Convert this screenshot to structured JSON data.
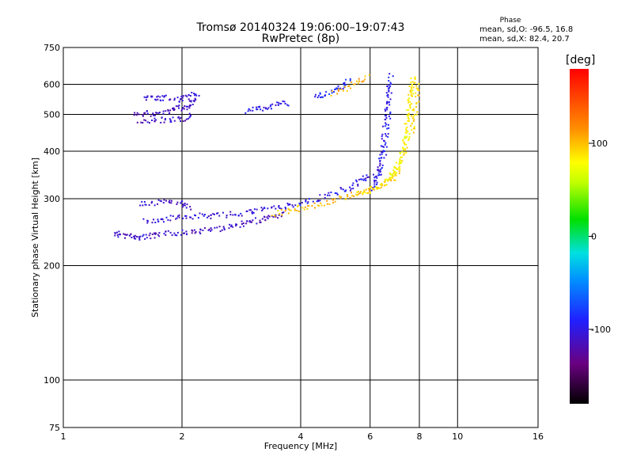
{
  "header": {
    "title_line1": "Tromsø 20140324 19:06:00–19:07:43",
    "title_line2": "RwPretec (8p)",
    "phase_label": "Phase",
    "stats_o": "mean, sd,O: -96.5, 16.8",
    "stats_x": "mean, sd,X:  82.4, 20.7"
  },
  "chart_data": {
    "type": "scatter",
    "xlabel": "Frequency [MHz]",
    "ylabel": "Stationary phase Virtual Height [km]",
    "x_scale": "log",
    "y_scale": "log",
    "xlim": [
      1,
      16
    ],
    "ylim": [
      75,
      750
    ],
    "x_ticks": [
      1,
      2,
      4,
      6,
      8,
      10,
      16
    ],
    "x_tick_labels": [
      "1",
      "2",
      "4",
      "6",
      "8",
      "10",
      "16"
    ],
    "y_ticks": [
      75,
      100,
      200,
      300,
      400,
      500,
      600,
      750
    ],
    "y_tick_labels": [
      "75",
      "100",
      "200",
      "300",
      "400",
      "500",
      "600",
      "750"
    ],
    "grid": true,
    "colorbar": {
      "label": "[deg]",
      "range": [
        -180,
        180
      ],
      "ticks": [
        -100,
        0,
        100
      ],
      "tick_labels": [
        "-100",
        "0",
        "100"
      ]
    },
    "series": [
      {
        "type": "traces",
        "traces": [
          {
            "phase": -112,
            "points": [
              [
                1.35,
                245
              ],
              [
                1.4,
                242
              ],
              [
                1.48,
                240
              ],
              [
                1.55,
                238
              ],
              [
                1.65,
                240
              ],
              [
                1.75,
                242
              ],
              [
                1.9,
                245
              ],
              [
                2.05,
                246
              ],
              [
                2.2,
                247
              ],
              [
                2.4,
                250
              ],
              [
                2.6,
                254
              ],
              [
                2.8,
                258
              ],
              [
                3.0,
                262
              ],
              [
                3.2,
                266
              ],
              [
                3.4,
                270
              ],
              [
                3.6,
                274
              ]
            ]
          },
          {
            "phase": -105,
            "points": [
              [
                1.6,
                262
              ],
              [
                1.75,
                265
              ],
              [
                1.9,
                268
              ],
              [
                2.05,
                270
              ],
              [
                2.25,
                272
              ],
              [
                2.45,
                272
              ],
              [
                2.7,
                275
              ],
              [
                2.95,
                278
              ],
              [
                3.2,
                282
              ],
              [
                3.5,
                286
              ],
              [
                3.8,
                290
              ]
            ]
          },
          {
            "phase": -110,
            "points": [
              [
                1.55,
                292
              ],
              [
                1.7,
                294
              ],
              [
                1.85,
                296
              ],
              [
                2.0,
                292
              ],
              [
                2.1,
                286
              ]
            ]
          },
          {
            "phase": -100,
            "points": [
              [
                3.8,
                290
              ],
              [
                4.2,
                298
              ],
              [
                4.6,
                305
              ],
              [
                5.0,
                315
              ],
              [
                5.4,
                325
              ],
              [
                5.7,
                338
              ],
              [
                5.9,
                348
              ]
            ]
          },
          {
            "phase": -95,
            "points": [
              [
                6.05,
                320
              ],
              [
                6.2,
                335
              ],
              [
                6.35,
                360
              ],
              [
                6.5,
                400
              ],
              [
                6.6,
                460
              ],
              [
                6.65,
                520
              ],
              [
                6.7,
                580
              ],
              [
                6.75,
                640
              ]
            ]
          },
          {
            "phase": -100,
            "points": [
              [
                6.15,
                345
              ],
              [
                6.3,
                370
              ],
              [
                6.45,
                420
              ],
              [
                6.55,
                480
              ],
              [
                6.62,
                550
              ],
              [
                6.68,
                610
              ]
            ]
          },
          {
            "phase": -115,
            "points": [
              [
                1.5,
                500
              ],
              [
                1.62,
                508
              ],
              [
                1.75,
                500
              ],
              [
                1.85,
                512
              ],
              [
                1.95,
                520
              ],
              [
                2.05,
                528
              ],
              [
                2.12,
                540
              ],
              [
                2.18,
                560
              ]
            ]
          },
          {
            "phase": -112,
            "points": [
              [
                1.55,
                480
              ],
              [
                1.7,
                483
              ],
              [
                1.85,
                486
              ],
              [
                2.0,
                488
              ],
              [
                2.12,
                500
              ]
            ]
          },
          {
            "phase": -108,
            "points": [
              [
                1.6,
                555
              ],
              [
                1.7,
                552
              ],
              [
                1.8,
                556
              ],
              [
                1.95,
                548
              ],
              [
                2.05,
                555
              ],
              [
                2.15,
                575
              ]
            ]
          },
          {
            "phase": -100,
            "points": [
              [
                2.9,
                510
              ],
              [
                3.1,
                518
              ],
              [
                3.3,
                525
              ],
              [
                3.5,
                532
              ],
              [
                3.7,
                538
              ]
            ]
          },
          {
            "phase": -90,
            "points": [
              [
                4.3,
                555
              ],
              [
                4.6,
                568
              ],
              [
                4.9,
                585
              ],
              [
                5.1,
                600
              ],
              [
                5.3,
                615
              ]
            ]
          },
          {
            "phase": 105,
            "points": [
              [
                3.4,
                275
              ],
              [
                3.7,
                280
              ],
              [
                4.0,
                285
              ],
              [
                4.4,
                291
              ],
              [
                4.8,
                298
              ],
              [
                5.2,
                305
              ],
              [
                5.6,
                312
              ],
              [
                6.0,
                318
              ],
              [
                6.4,
                326
              ],
              [
                6.8,
                340
              ],
              [
                7.1,
                360
              ]
            ]
          },
          {
            "phase": 88,
            "points": [
              [
                5.5,
                310
              ],
              [
                6.0,
                318
              ],
              [
                6.4,
                330
              ],
              [
                6.8,
                345
              ],
              [
                7.1,
                368
              ],
              [
                7.3,
                400
              ],
              [
                7.45,
                440
              ],
              [
                7.55,
                480
              ],
              [
                7.62,
                540
              ],
              [
                7.67,
                600
              ],
              [
                7.7,
                640
              ]
            ]
          },
          {
            "phase": 80,
            "points": [
              [
                6.6,
                340
              ],
              [
                6.9,
                355
              ],
              [
                7.1,
                375
              ],
              [
                7.25,
                410
              ],
              [
                7.35,
                450
              ],
              [
                7.45,
                500
              ],
              [
                7.55,
                560
              ],
              [
                7.62,
                620
              ]
            ]
          },
          {
            "phase": 95,
            "points": [
              [
                7.7,
                450
              ],
              [
                7.78,
                500
              ],
              [
                7.85,
                560
              ],
              [
                7.9,
                610
              ]
            ]
          },
          {
            "phase": 110,
            "points": [
              [
                4.8,
                570
              ],
              [
                5.2,
                590
              ],
              [
                5.6,
                610
              ],
              [
                5.9,
                630
              ]
            ]
          }
        ]
      }
    ]
  }
}
